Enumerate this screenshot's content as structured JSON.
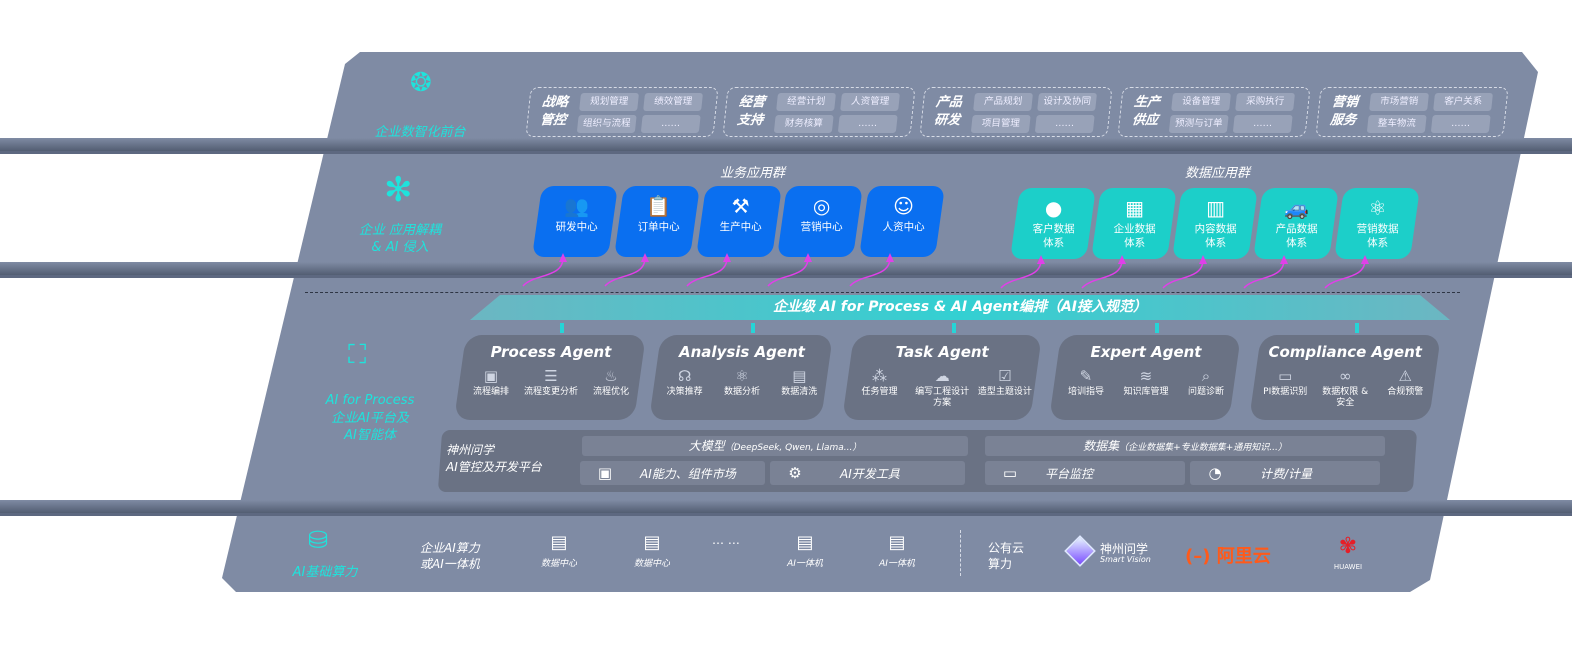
{
  "layers": {
    "front": {
      "label": "企业数智化前台",
      "icon": "brain-icon"
    },
    "apps": {
      "label": "企业 应用解耦\n& AI 侵入",
      "icon": "molecule-icon"
    },
    "platform": {
      "label_en": "AI for Process",
      "label_cn": "企业AI平台及\nAI智能体",
      "icon": "face-scan-icon"
    },
    "compute": {
      "label": "AI基础算力",
      "icon": "database-icon"
    }
  },
  "front_groups": [
    {
      "title": "战略\n管控",
      "items": [
        "规划管理",
        "绩效管理",
        "组织与流程",
        "……"
      ]
    },
    {
      "title": "经营\n支持",
      "items": [
        "经营计划",
        "人资管理",
        "财务核算",
        "……"
      ]
    },
    {
      "title": "产品\n研发",
      "items": [
        "产品规划",
        "设计及协同",
        "项目管理",
        "……"
      ]
    },
    {
      "title": "生产\n供应",
      "items": [
        "设备管理",
        "采购执行",
        "预测与订单",
        "……"
      ]
    },
    {
      "title": "营销\n服务",
      "items": [
        "市场营销",
        "客户关系",
        "整车物流",
        "……"
      ]
    }
  ],
  "business_apps": {
    "title": "业务应用群",
    "color": "#0a6ff0",
    "items": [
      {
        "label": "研发中心",
        "icon": "users-icon"
      },
      {
        "label": "订单中心",
        "icon": "clipboard-icon"
      },
      {
        "label": "生产中心",
        "icon": "factory-icon"
      },
      {
        "label": "营销中心",
        "icon": "target-icon"
      },
      {
        "label": "人资中心",
        "icon": "people-icon"
      }
    ]
  },
  "data_apps": {
    "title": "数据应用群",
    "color": "#1ccfc9",
    "items": [
      {
        "label": "客户数据\n体系",
        "icon": "user-icon"
      },
      {
        "label": "企业数据\n体系",
        "icon": "building-icon"
      },
      {
        "label": "内容数据\n体系",
        "icon": "books-icon"
      },
      {
        "label": "产品数据\n体系",
        "icon": "car-icon"
      },
      {
        "label": "营销数据\n体系",
        "icon": "atom-icon"
      }
    ]
  },
  "banner": "企业级 AI for Process & AI Agent编排（AI接入规范）",
  "agents": [
    {
      "title": "Process Agent",
      "items": [
        {
          "label": "流程编排",
          "icon": "flow-icon"
        },
        {
          "label": "流程变更分析",
          "icon": "list-icon"
        },
        {
          "label": "流程优化",
          "icon": "optimize-icon"
        }
      ]
    },
    {
      "title": "Analysis Agent",
      "items": [
        {
          "label": "决策推荐",
          "icon": "head-icon"
        },
        {
          "label": "数据分析",
          "icon": "atom-icon"
        },
        {
          "label": "数据清洗",
          "icon": "doc-icon"
        }
      ]
    },
    {
      "title": "Task Agent",
      "items": [
        {
          "label": "任务管理",
          "icon": "network-icon"
        },
        {
          "label": "编写工程设计方案",
          "icon": "cloud-icon"
        },
        {
          "label": "造型主题设计",
          "icon": "checklist-icon"
        }
      ]
    },
    {
      "title": "Expert Agent",
      "items": [
        {
          "label": "培训指导",
          "icon": "training-icon"
        },
        {
          "label": "知识库管理",
          "icon": "layers-icon"
        },
        {
          "label": "问题诊断",
          "icon": "diagnose-icon"
        }
      ]
    },
    {
      "title": "Compliance Agent",
      "items": [
        {
          "label": "PI数据识别",
          "icon": "id-icon"
        },
        {
          "label": "数据权限 &\n安全",
          "icon": "link-icon"
        },
        {
          "label": "合规预警",
          "icon": "alert-icon"
        }
      ]
    }
  ],
  "dev_platform": {
    "title": "神州问学\nAI管控及开发平台",
    "model": "大模型",
    "model_note": "（DeepSeek, Qwen, Llama...）",
    "dataset": "数据集",
    "dataset_note": "（企业数据集+专业数据集+通用知识...）",
    "tools": [
      {
        "label": "AI能力、组件市场",
        "icon": "market-icon"
      },
      {
        "label": "AI开发工具",
        "icon": "devtool-icon"
      },
      {
        "label": "平台监控",
        "icon": "monitor-icon"
      },
      {
        "label": "计费/计量",
        "icon": "gauge-icon"
      }
    ]
  },
  "compute": {
    "private_label": "企业AI算力\n或AI一体机",
    "servers": [
      "数据中心",
      "数据中心",
      "AI一体机",
      "AI一体机"
    ],
    "ellipsis": "… …",
    "public_label": "公有云\n算力",
    "logos": [
      {
        "name": "神州问学",
        "sub": "Smart Vision"
      },
      {
        "name": "阿里云",
        "color": "#ff5a1a"
      },
      {
        "name": "HUAWEI",
        "color": "#e61e27"
      }
    ]
  },
  "colors": {
    "panel": "#7f8ba4",
    "cyan": "#1fe3dc",
    "arrow": "#e040e8"
  }
}
